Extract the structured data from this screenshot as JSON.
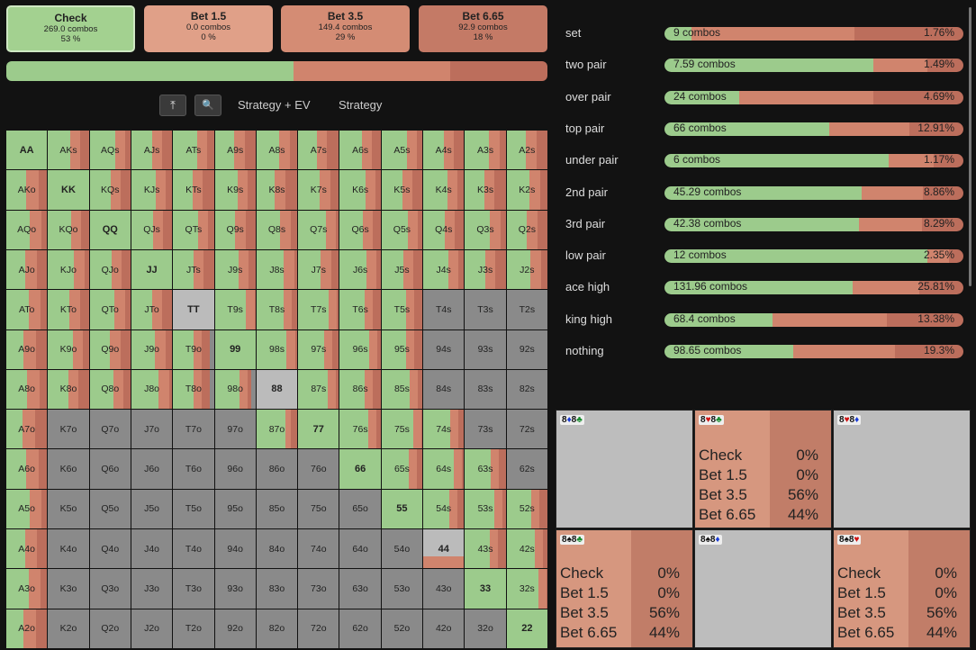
{
  "colors": {
    "check": "#9ccb8c",
    "bet_small": "#d99a80",
    "bet_mid": "#d0846d",
    "bet_big": "#bc6e5c",
    "empty": "#8a8a8a",
    "pair_blank": "#bbbbbb"
  },
  "actions": [
    {
      "name": "Check",
      "combos": "269.0 combos",
      "pct": "53 %",
      "color": "#a3d190"
    },
    {
      "name": "Bet 1.5",
      "combos": "0.0 combos",
      "pct": "0 %",
      "color": "#e0a088"
    },
    {
      "name": "Bet 3.5",
      "combos": "149.4 combos",
      "pct": "29 %",
      "color": "#d48c74"
    },
    {
      "name": "Bet 6.65",
      "combos": "92.9 combos",
      "pct": "18 %",
      "color": "#c47a66"
    }
  ],
  "frequency_bar": [
    {
      "pct": 53,
      "color": "#9ccb8c"
    },
    {
      "pct": 29,
      "color": "#d0846d"
    },
    {
      "pct": 18,
      "color": "#bc6e5c"
    }
  ],
  "toolbar": {
    "up_icon": "⤒",
    "search_icon": "🔍",
    "strategy_ev_label": "Strategy + EV",
    "strategy_label": "Strategy"
  },
  "ranks": [
    "A",
    "K",
    "Q",
    "J",
    "T",
    "9",
    "8",
    "7",
    "6",
    "5",
    "4",
    "3",
    "2"
  ],
  "categories": [
    {
      "name": "set",
      "combos": "9 combos",
      "pct": "1.76%",
      "check": 9
    },
    {
      "name": "two pair",
      "combos": "7.59 combos",
      "pct": "1.49%",
      "check": 70
    },
    {
      "name": "over pair",
      "combos": "24 combos",
      "pct": "4.69%",
      "check": 25
    },
    {
      "name": "top pair",
      "combos": "66 combos",
      "pct": "12.91%",
      "check": 55
    },
    {
      "name": "under pair",
      "combos": "6 combos",
      "pct": "1.17%",
      "check": 75
    },
    {
      "name": "2nd pair",
      "combos": "45.29 combos",
      "pct": "8.86%",
      "check": 66
    },
    {
      "name": "3rd pair",
      "combos": "42.38 combos",
      "pct": "8.29%",
      "check": 65
    },
    {
      "name": "low pair",
      "combos": "12 combos",
      "pct": "2.35%",
      "check": 88
    },
    {
      "name": "ace high",
      "combos": "131.96 combos",
      "pct": "25.81%",
      "check": 63
    },
    {
      "name": "king high",
      "combos": "68.4 combos",
      "pct": "13.38%",
      "check": 36
    },
    {
      "name": "nothing",
      "combos": "98.65 combos",
      "pct": "19.3%",
      "check": 43
    }
  ],
  "cards": [
    {
      "label_a": "8",
      "suit_a": "♦",
      "suit_a_color": "blu",
      "label_b": "8",
      "suit_b": "♣",
      "suit_b_color": "grn",
      "filled": false
    },
    {
      "label_a": "8",
      "suit_a": "♥",
      "suit_a_color": "red",
      "label_b": "8",
      "suit_b": "♣",
      "suit_b_color": "grn",
      "filled": true,
      "rows": [
        [
          "Check",
          "0%"
        ],
        [
          "Bet 1.5",
          "0%"
        ],
        [
          "Bet 3.5",
          "56%"
        ],
        [
          "Bet 6.65",
          "44%"
        ]
      ]
    },
    {
      "label_a": "8",
      "suit_a": "♥",
      "suit_a_color": "red",
      "label_b": "8",
      "suit_b": "♦",
      "suit_b_color": "blu",
      "filled": false
    },
    {
      "label_a": "8",
      "suit_a": "♠",
      "suit_a_color": "blk",
      "label_b": "8",
      "suit_b": "♣",
      "suit_b_color": "grn",
      "filled": true,
      "rows": [
        [
          "Check",
          "0%"
        ],
        [
          "Bet 1.5",
          "0%"
        ],
        [
          "Bet 3.5",
          "56%"
        ],
        [
          "Bet 6.65",
          "44%"
        ]
      ]
    },
    {
      "label_a": "8",
      "suit_a": "♠",
      "suit_a_color": "blk",
      "label_b": "8",
      "suit_b": "♦",
      "suit_b_color": "blu",
      "filled": false
    },
    {
      "label_a": "8",
      "suit_a": "♠",
      "suit_a_color": "blk",
      "label_b": "8",
      "suit_b": "♥",
      "suit_b_color": "red",
      "filled": true,
      "rows": [
        [
          "Check",
          "0%"
        ],
        [
          "Bet 1.5",
          "0%"
        ],
        [
          "Bet 3.5",
          "56%"
        ],
        [
          "Bet 6.65",
          "44%"
        ]
      ]
    }
  ]
}
